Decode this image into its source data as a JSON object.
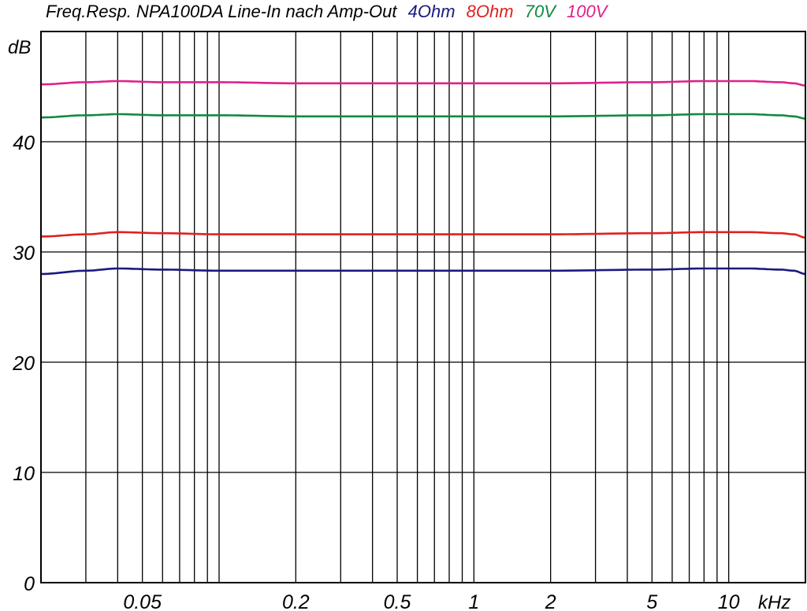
{
  "chart_data": {
    "type": "line",
    "title": "Freq.Resp. NPA100DA Line-In nach Amp-Out",
    "ylabel": "dB",
    "xunit": "kHz",
    "xscale": "log",
    "xlim": [
      0.02,
      20
    ],
    "ylim": [
      0,
      50
    ],
    "grid": true,
    "legend": "inline in title",
    "yticks": [
      {
        "value": 0,
        "label": "0"
      },
      {
        "value": 10,
        "label": "10"
      },
      {
        "value": 20,
        "label": "20"
      },
      {
        "value": 30,
        "label": "30"
      },
      {
        "value": 40,
        "label": "40"
      }
    ],
    "xticks": [
      {
        "value": 0.05,
        "label": "0.05"
      },
      {
        "value": 0.2,
        "label": "0.2"
      },
      {
        "value": 0.5,
        "label": "0.5"
      },
      {
        "value": 1,
        "label": "1"
      },
      {
        "value": 2,
        "label": "2"
      },
      {
        "value": 5,
        "label": "5"
      },
      {
        "value": 10,
        "label": "10"
      }
    ],
    "series": [
      {
        "name": "4Ohm",
        "color": "#1a1a80",
        "x": [
          0.02,
          0.03,
          0.04,
          0.06,
          0.1,
          0.2,
          0.5,
          1,
          2,
          5,
          8,
          12,
          16,
          18,
          20
        ],
        "y": [
          28.0,
          28.3,
          28.5,
          28.4,
          28.3,
          28.3,
          28.3,
          28.3,
          28.3,
          28.4,
          28.5,
          28.5,
          28.4,
          28.3,
          28.0
        ]
      },
      {
        "name": "8Ohm",
        "color": "#e02020",
        "x": [
          0.02,
          0.03,
          0.04,
          0.06,
          0.1,
          0.2,
          0.5,
          1,
          2,
          5,
          8,
          12,
          16,
          18,
          20
        ],
        "y": [
          31.4,
          31.6,
          31.8,
          31.7,
          31.6,
          31.6,
          31.6,
          31.6,
          31.6,
          31.7,
          31.8,
          31.8,
          31.7,
          31.6,
          31.3
        ]
      },
      {
        "name": "70V",
        "color": "#108a40",
        "x": [
          0.02,
          0.03,
          0.04,
          0.06,
          0.1,
          0.2,
          0.5,
          1,
          2,
          5,
          8,
          12,
          16,
          18,
          20
        ],
        "y": [
          42.2,
          42.4,
          42.5,
          42.4,
          42.4,
          42.3,
          42.3,
          42.3,
          42.3,
          42.4,
          42.5,
          42.5,
          42.4,
          42.3,
          42.1
        ]
      },
      {
        "name": "100V",
        "color": "#e0208a",
        "x": [
          0.02,
          0.03,
          0.04,
          0.06,
          0.1,
          0.2,
          0.5,
          1,
          2,
          5,
          8,
          12,
          16,
          18,
          20
        ],
        "y": [
          45.2,
          45.4,
          45.5,
          45.4,
          45.4,
          45.3,
          45.3,
          45.3,
          45.3,
          45.4,
          45.5,
          45.5,
          45.4,
          45.3,
          45.1
        ]
      }
    ]
  }
}
